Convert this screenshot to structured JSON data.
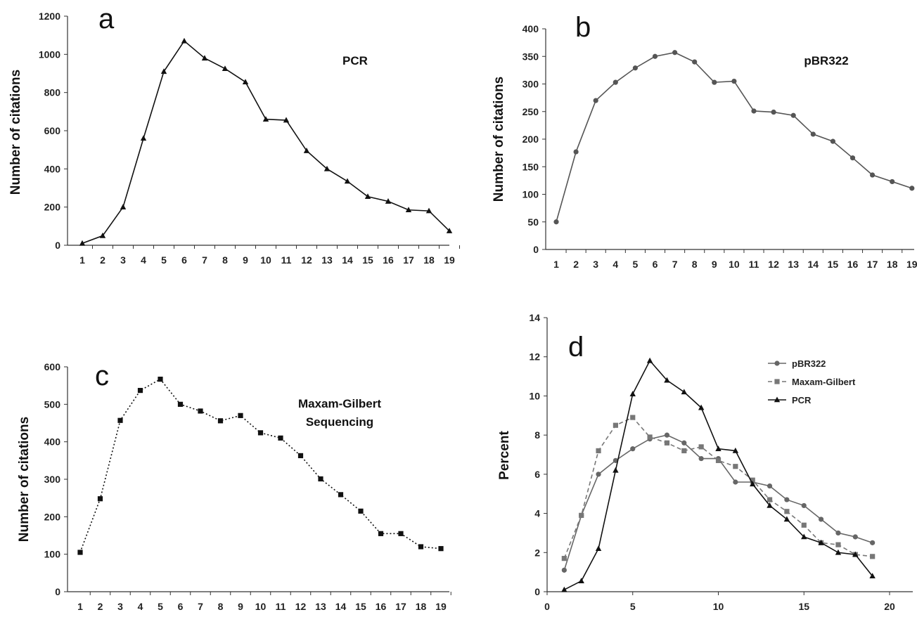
{
  "chart_data": [
    {
      "id": "a",
      "type": "line",
      "panel_label": "a",
      "annotation": [
        "PCR"
      ],
      "ylabel": "Number of citations",
      "xlabel": "",
      "x": [
        1,
        2,
        3,
        4,
        5,
        6,
        7,
        8,
        9,
        10,
        11,
        12,
        13,
        14,
        15,
        16,
        17,
        18,
        19
      ],
      "ylim": [
        0,
        1200
      ],
      "yticks": [
        0,
        200,
        400,
        600,
        800,
        1000,
        1200
      ],
      "series": [
        {
          "values": [
            10,
            50,
            200,
            560,
            910,
            1070,
            980,
            925,
            855,
            660,
            655,
            495,
            400,
            335,
            255,
            230,
            185,
            180,
            75
          ],
          "marker": "triangle",
          "color": "#111111",
          "dash": "solid"
        }
      ]
    },
    {
      "id": "b",
      "type": "line",
      "panel_label": "b",
      "annotation": [
        "pBR322"
      ],
      "ylabel": "Number of citations",
      "xlabel": "",
      "x": [
        1,
        2,
        3,
        4,
        5,
        6,
        7,
        8,
        9,
        10,
        11,
        12,
        13,
        14,
        15,
        16,
        17,
        18,
        19
      ],
      "ylim": [
        0,
        400
      ],
      "yticks": [
        0,
        50,
        100,
        150,
        200,
        250,
        300,
        350,
        400
      ],
      "series": [
        {
          "values": [
            50,
            177,
            270,
            303,
            329,
            350,
            357,
            340,
            303,
            305,
            251,
            249,
            243,
            209,
            196,
            166,
            135,
            123,
            111
          ],
          "marker": "circle",
          "color": "#555555",
          "dash": "solid"
        }
      ]
    },
    {
      "id": "c",
      "type": "line",
      "panel_label": "c",
      "annotation": [
        "Maxam-Gilbert",
        "Sequencing"
      ],
      "ylabel": "Number of citations",
      "xlabel": "",
      "x": [
        1,
        2,
        3,
        4,
        5,
        6,
        7,
        8,
        9,
        10,
        11,
        12,
        13,
        14,
        15,
        16,
        17,
        18,
        19
      ],
      "ylim": [
        0,
        600
      ],
      "yticks": [
        0,
        100,
        200,
        300,
        400,
        500,
        600
      ],
      "series": [
        {
          "values": [
            105,
            248,
            457,
            537,
            567,
            500,
            482,
            456,
            470,
            424,
            410,
            363,
            301,
            259,
            215,
            155,
            155,
            120,
            115
          ],
          "marker": "square",
          "color": "#111111",
          "dash": "dotted"
        }
      ]
    },
    {
      "id": "d",
      "type": "line",
      "panel_label": "d",
      "ylabel": "Percent",
      "xlabel": "",
      "xlim": [
        0,
        20
      ],
      "xticks": [
        0,
        5,
        10,
        15,
        20
      ],
      "ylim": [
        0,
        14
      ],
      "yticks": [
        0,
        2,
        4,
        6,
        8,
        10,
        12,
        14
      ],
      "legend": "top-right",
      "x": [
        1,
        2,
        3,
        4,
        5,
        6,
        7,
        8,
        9,
        10,
        11,
        12,
        13,
        14,
        15,
        16,
        17,
        18,
        19
      ],
      "series": [
        {
          "name": "pBR322",
          "marker": "circle",
          "color": "#666666",
          "dash": "solid",
          "values": [
            1.1,
            3.9,
            6.0,
            6.7,
            7.3,
            7.8,
            8.0,
            7.6,
            6.8,
            6.8,
            5.6,
            5.6,
            5.4,
            4.7,
            4.4,
            3.7,
            3.0,
            2.8,
            2.5
          ]
        },
        {
          "name": "Maxam-Gilbert",
          "marker": "square",
          "color": "#777777",
          "dash": "dashed",
          "values": [
            1.7,
            3.9,
            7.2,
            8.5,
            8.9,
            7.9,
            7.6,
            7.2,
            7.4,
            6.7,
            6.4,
            5.7,
            4.7,
            4.1,
            3.4,
            2.5,
            2.4,
            1.9,
            1.8
          ]
        },
        {
          "name": "PCR",
          "marker": "triangle",
          "color": "#111111",
          "dash": "solid",
          "values": [
            0.1,
            0.55,
            2.2,
            6.2,
            10.1,
            11.8,
            10.8,
            10.2,
            9.4,
            7.3,
            7.2,
            5.5,
            4.4,
            3.7,
            2.8,
            2.5,
            2.0,
            1.9,
            0.8
          ]
        }
      ]
    }
  ]
}
